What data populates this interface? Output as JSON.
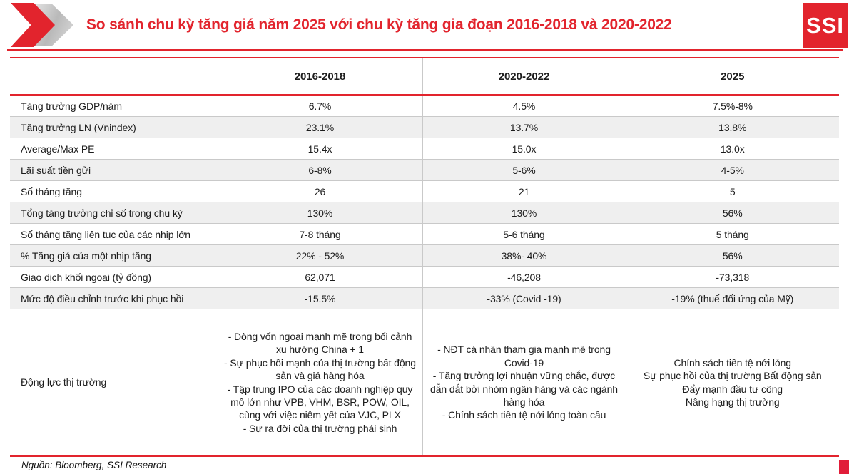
{
  "header": {
    "title": "So sánh chu kỳ tăng giá năm 2025 với chu kỳ tăng gia đoạn 2016-2018 và 2020-2022",
    "logo_text": "SSI",
    "accent_color": "#e2242d"
  },
  "table": {
    "columns": [
      "",
      "2016-2018",
      "2020-2022",
      "2025"
    ],
    "rows": [
      {
        "label": "Tăng trưởng GDP/năm",
        "values": [
          "6.7%",
          "4.5%",
          "7.5%-8%"
        ]
      },
      {
        "label": "Tăng trưởng LN (Vnindex)",
        "values": [
          "23.1%",
          "13.7%",
          "13.8%"
        ]
      },
      {
        "label": "Average/Max PE",
        "values": [
          "15.4x",
          "15.0x",
          "13.0x"
        ]
      },
      {
        "label": "Lãi suất tiền gửi",
        "values": [
          "6-8%",
          "5-6%",
          "4-5%"
        ]
      },
      {
        "label": "Số tháng tăng",
        "values": [
          "26",
          "21",
          "5"
        ]
      },
      {
        "label": "Tổng tăng trưởng chỉ số trong chu kỳ",
        "values": [
          "130%",
          "130%",
          "56%"
        ]
      },
      {
        "label": "Số tháng tăng liên tục của các nhịp lớn",
        "values": [
          "7-8 tháng",
          "5-6 tháng",
          "5 tháng"
        ]
      },
      {
        "label": "% Tăng giá của một nhịp tăng",
        "values": [
          "22% - 52%",
          "38%- 40%",
          "56%"
        ]
      },
      {
        "label": "Giao dịch khối ngoại (tỷ đồng)",
        "values": [
          "62,071",
          "-46,208",
          "-73,318"
        ]
      },
      {
        "label": "Mức độ điều chỉnh trước khi phục hồi",
        "values": [
          "-15.5%",
          "-33% (Covid -19)",
          "-19% (thuế đối ứng của Mỹ)"
        ]
      }
    ],
    "drivers_row": {
      "label": "Động lực thị trường",
      "cells": [
        [
          "- Dòng vốn ngoại mạnh mẽ trong bối cảnh xu hướng China + 1",
          "- Sự phục hồi mạnh của thị trường bất động sản và giá hàng hóa",
          "- Tập trung IPO của các doanh nghiệp quy mô lớn như VPB, VHM, BSR, POW, OIL, cùng với việc niêm yết của VJC, PLX",
          "- Sự ra đời của thị trường phái sinh"
        ],
        [
          "- NĐT cá nhân tham gia mạnh mẽ trong Covid-19",
          "- Tăng trưởng lợi nhuận vững chắc, được dẫn dắt bởi nhóm ngân hàng và các ngành hàng hóa",
          "- Chính sách tiền tệ nới lỏng toàn cầu"
        ],
        [
          "Chính sách tiền tệ nới lỏng",
          "Sự phục hồi của thị trường Bất động sản",
          "Đẩy mạnh đầu tư công",
          "Nâng hạng thị trường"
        ]
      ]
    }
  },
  "footer": {
    "source": "Nguồn: Bloomberg, SSI Research"
  }
}
